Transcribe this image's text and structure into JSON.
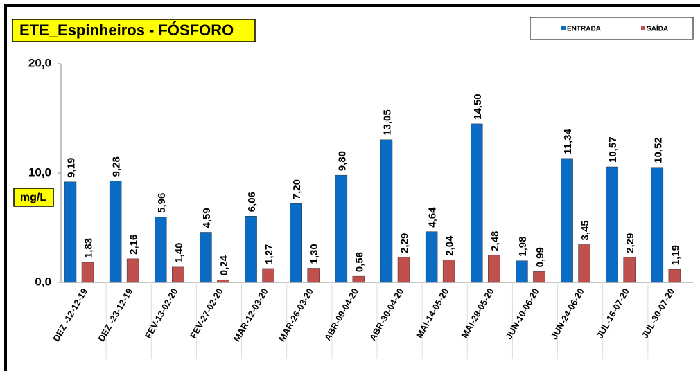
{
  "chart_data": {
    "type": "bar",
    "title": "ETE_Espinheiros - FÓSFORO",
    "y_label": "mg/L",
    "categories": [
      "DEZ -12-12-19",
      "DEZ -23-12-19",
      "FEV-13-02-20",
      "FEV-27-02-20",
      "MAR-12-03-20",
      "MAR-26-03-20",
      "ABR-09-04-20",
      "ABR-30-04-20",
      "MAI-14-05-20",
      "MAI-28-05-20",
      "JUN-10-06-20",
      "JUN-24-06-20",
      "JUL-16-07-20",
      "JUL-30-07-20"
    ],
    "series": [
      {
        "name": "ENTRADA",
        "color": "#0a6cc4",
        "values": [
          9.19,
          9.28,
          5.96,
          4.59,
          6.06,
          7.2,
          9.8,
          13.05,
          4.64,
          14.5,
          1.98,
          11.34,
          10.57,
          10.52
        ],
        "value_labels": [
          "9,19",
          "9,28",
          "5,96",
          "4,59",
          "6,06",
          "7,20",
          "9,80",
          "13,05",
          "4,64",
          "14,50",
          "1,98",
          "11,34",
          "10,57",
          "10,52"
        ]
      },
      {
        "name": "SAÍDA",
        "color": "#c0504d",
        "values": [
          1.83,
          2.16,
          1.4,
          0.24,
          1.27,
          1.3,
          0.56,
          2.29,
          2.04,
          2.48,
          0.99,
          3.45,
          2.29,
          1.19
        ],
        "value_labels": [
          "1,83",
          "2,16",
          "1,40",
          "0,24",
          "1,27",
          "1,30",
          "0,56",
          "2,29",
          "2,04",
          "2,48",
          "0,99",
          "3,45",
          "2,29",
          "1,19"
        ]
      }
    ],
    "ylim": [
      0,
      20
    ],
    "yticks": [
      {
        "value": 0,
        "label": "0,0"
      },
      {
        "value": 10,
        "label": "10,0"
      },
      {
        "value": 20,
        "label": "20,0"
      }
    ],
    "legend": "upper right",
    "grid": false
  }
}
